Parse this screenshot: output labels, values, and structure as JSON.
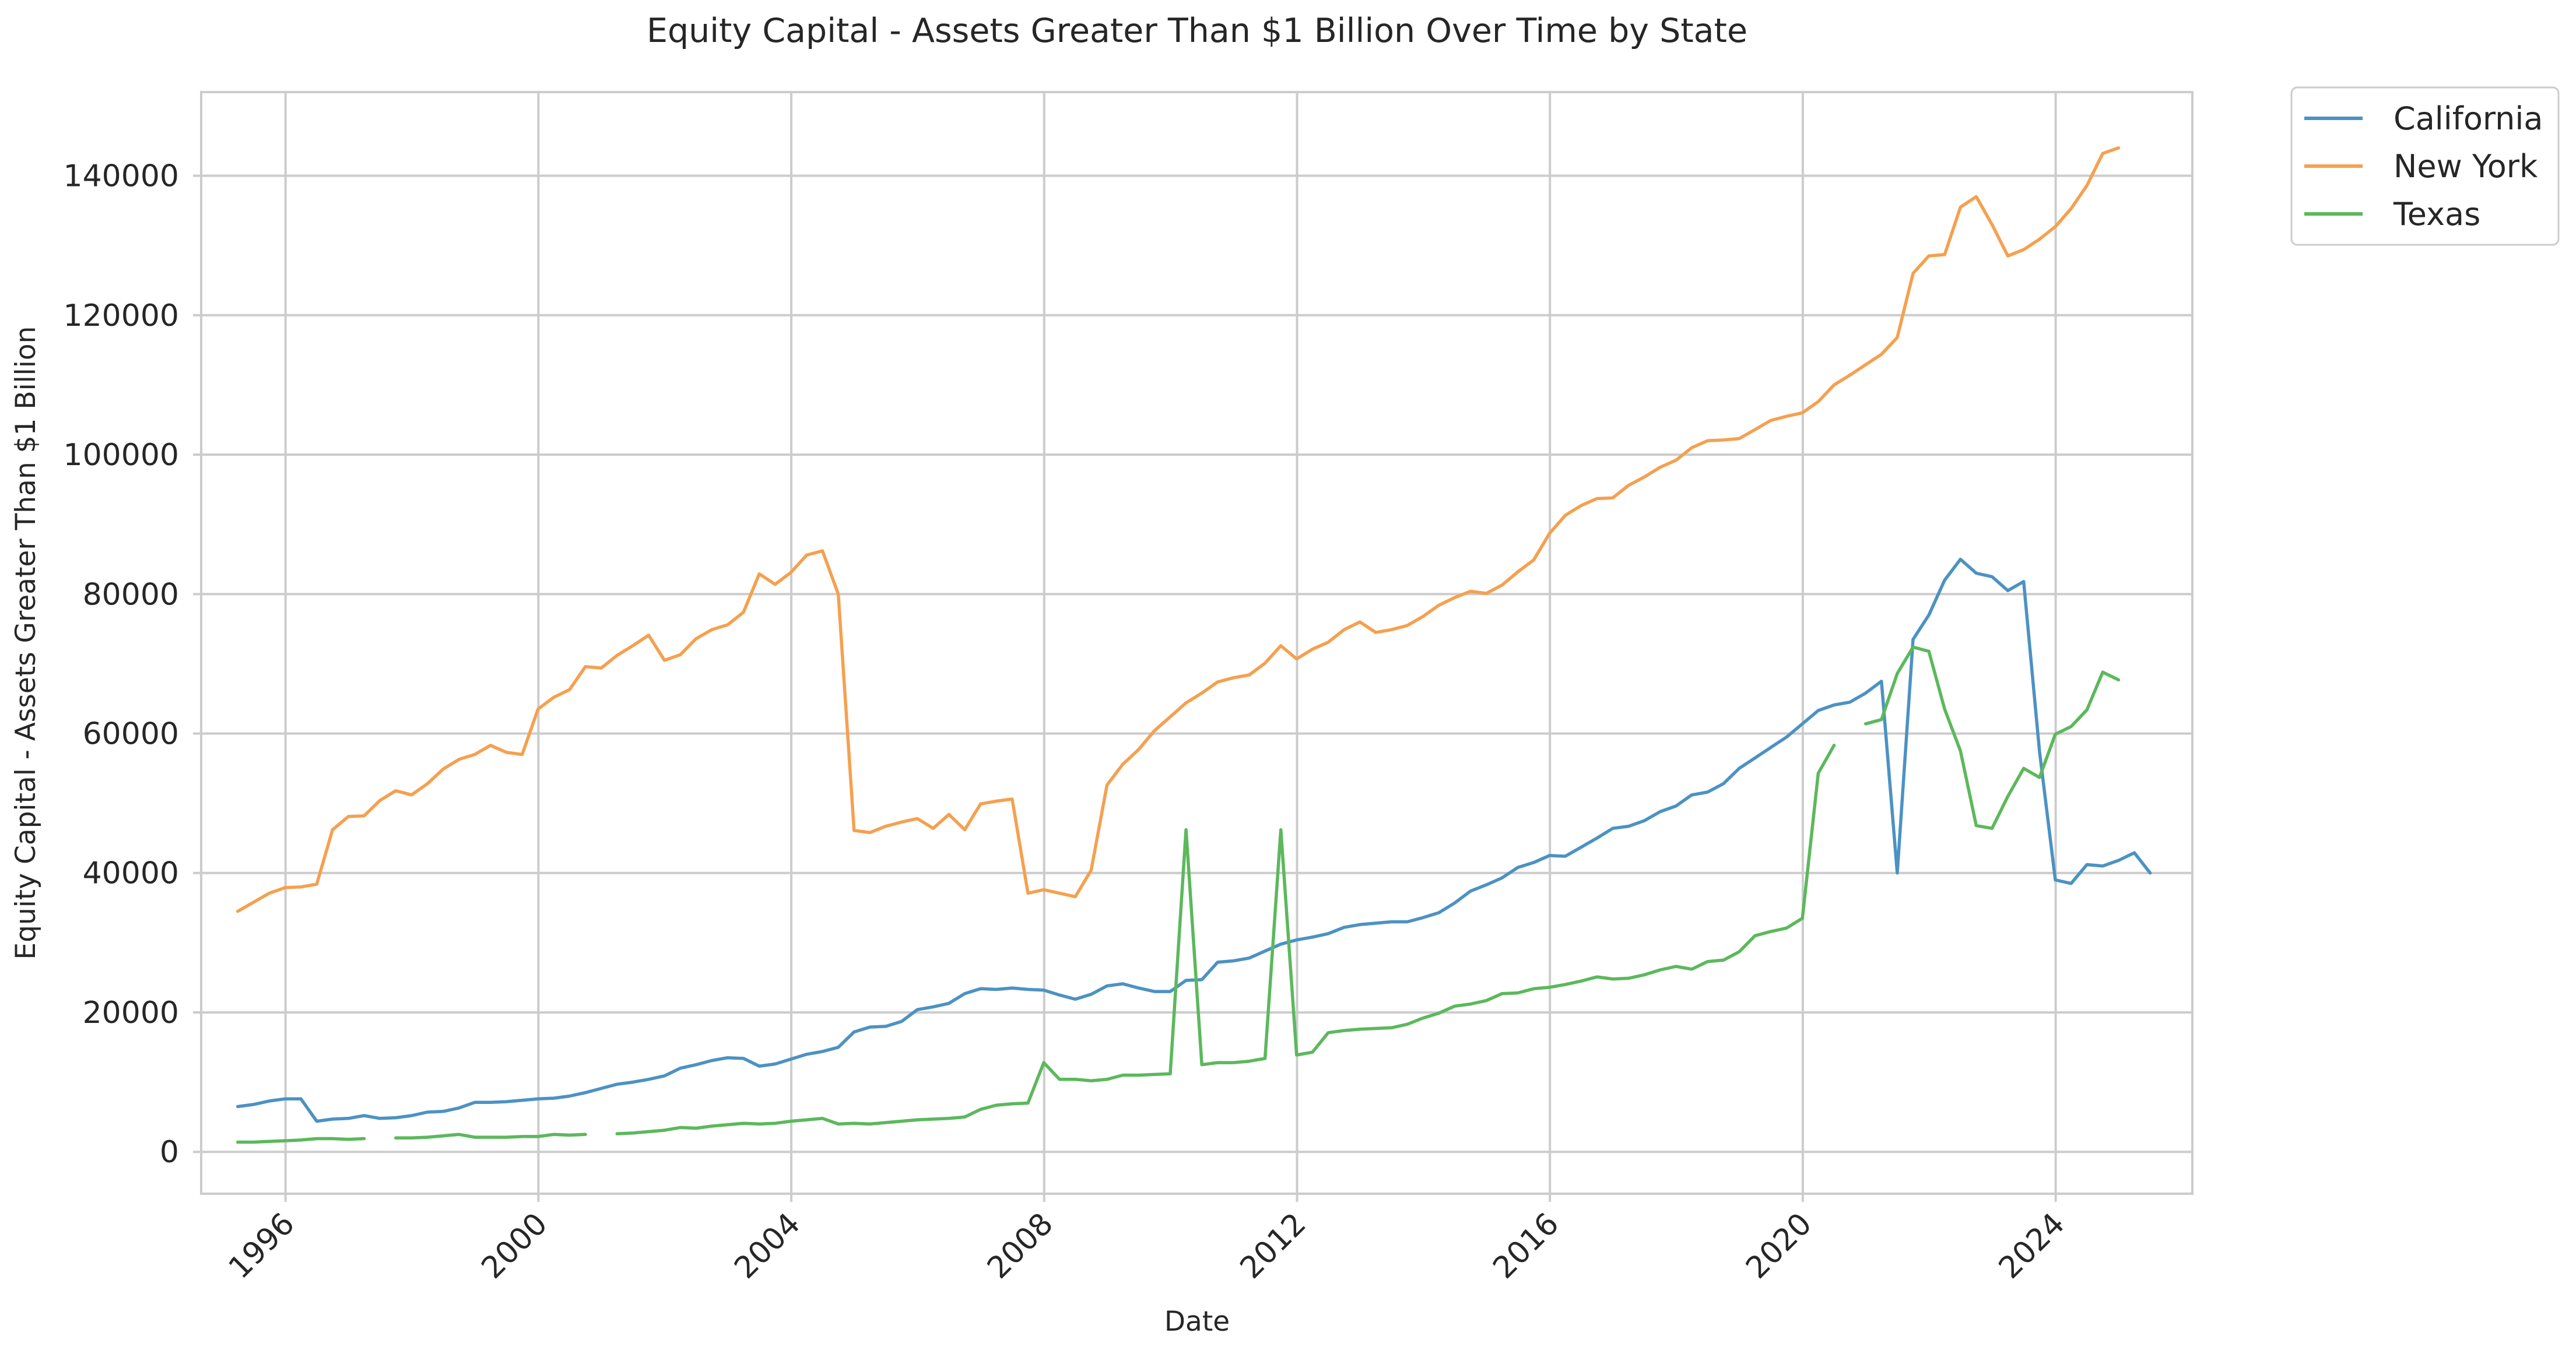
{
  "chart_data": {
    "type": "line",
    "title": "Equity Capital - Assets Greater Than $1 Billion Over Time by State",
    "xlabel": "Date",
    "ylabel": "Equity Capital - Assets Greater Than $1 Billion",
    "xlim": [
      "1994-09-01",
      "2026-03-01"
    ],
    "ylim": [
      -6000,
      152000
    ],
    "x_ticks": [
      "1996",
      "2000",
      "2004",
      "2008",
      "2012",
      "2016",
      "2020",
      "2024"
    ],
    "y_ticks": [
      0,
      20000,
      40000,
      60000,
      80000,
      100000,
      120000,
      140000
    ],
    "y_tick_labels": [
      "0",
      "20000",
      "40000",
      "60000",
      "80000",
      "100000",
      "120000",
      "140000"
    ],
    "grid": true,
    "legend_position": "outside top-right",
    "start_quarter": "1995-03-31",
    "series": [
      {
        "name": "California",
        "color": "#4c92c3",
        "values": [
          6500,
          6800,
          7300,
          7600,
          7600,
          4400,
          4700,
          4800,
          5200,
          4800,
          4900,
          5200,
          5700,
          5800,
          6300,
          7100,
          7100,
          7200,
          7400,
          7600,
          7700,
          8000,
          8500,
          9100,
          9700,
          10000,
          10400,
          10900,
          12000,
          12500,
          13100,
          13500,
          13400,
          12300,
          12600,
          13300,
          14000,
          14400,
          15000,
          17200,
          17900,
          18000,
          18700,
          20400,
          20800,
          21300,
          22700,
          23400,
          23300,
          23500,
          23300,
          23200,
          22500,
          21900,
          22600,
          23800,
          24100,
          23500,
          23000,
          23000,
          24600,
          24700,
          27200,
          27400,
          27800,
          28800,
          29800,
          30400,
          30800,
          31300,
          32200,
          32600,
          32800,
          33000,
          33000,
          33600,
          34300,
          35700,
          37400,
          38300,
          39300,
          40800,
          41500,
          42500,
          42400,
          43700,
          45000,
          46400,
          46700,
          47500,
          48800,
          49600,
          51200,
          51600,
          52800,
          55000,
          56500,
          58000,
          59500,
          61400,
          63300,
          64100,
          64500,
          65800,
          67500,
          40000,
          73500,
          77000,
          82000,
          85000,
          83000,
          82500,
          80500,
          81800,
          57500,
          39000,
          38500,
          41200,
          41000,
          41800,
          42900,
          40000
        ]
      },
      {
        "name": "New York",
        "color": "#f5a04f",
        "values": [
          34500,
          35800,
          37100,
          37900,
          38000,
          38400,
          46200,
          48100,
          48200,
          50400,
          51800,
          51200,
          52800,
          54900,
          56300,
          57000,
          58300,
          57300,
          57000,
          63500,
          65200,
          66300,
          69600,
          69400,
          71200,
          72600,
          74100,
          70500,
          71300,
          73600,
          74900,
          75600,
          77400,
          82900,
          81400,
          83100,
          85600,
          86200,
          80000,
          46100,
          45800,
          46700,
          47300,
          47800,
          46400,
          48400,
          46200,
          49900,
          50300,
          50600,
          37100,
          37600,
          37100,
          36600,
          40400,
          52600,
          55600,
          57700,
          60400,
          62400,
          64400,
          65800,
          67400,
          68000,
          68400,
          70100,
          72600,
          70700,
          72100,
          73100,
          74900,
          76000,
          74500,
          74900,
          75500,
          76800,
          78400,
          79500,
          80400,
          80100,
          81300,
          83200,
          84900,
          88700,
          91300,
          92700,
          93700,
          93800,
          95600,
          96800,
          98200,
          99200,
          101000,
          102000,
          102100,
          102300,
          103600,
          104900,
          105500,
          106000,
          107600,
          110000,
          111400,
          112900,
          114400,
          116800,
          126000,
          128500,
          128700,
          135500,
          137000,
          133000,
          128500,
          129400,
          130900,
          132700,
          135300,
          138600,
          143200,
          144000
        ]
      },
      {
        "name": "Texas",
        "color": "#5cb85c",
        "values": [
          1400,
          1400,
          1500,
          1600,
          1700,
          1900,
          1900,
          1800,
          1900,
          null,
          2000,
          2000,
          2100,
          2300,
          2500,
          2100,
          2100,
          2100,
          2200,
          2200,
          2500,
          2400,
          2500,
          null,
          2600,
          2700,
          2900,
          3100,
          3500,
          3400,
          3700,
          3900,
          4100,
          4000,
          4100,
          4400,
          4600,
          4800,
          4000,
          4100,
          4000,
          4200,
          4400,
          4600,
          4700,
          4800,
          5000,
          6100,
          6700,
          6900,
          7000,
          12800,
          10400,
          10400,
          10200,
          10400,
          11000,
          11000,
          11100,
          11200,
          46200,
          12500,
          12800,
          12800,
          13000,
          13400,
          46200,
          13900,
          14300,
          17100,
          17400,
          17600,
          17700,
          17800,
          18300,
          19200,
          19900,
          20900,
          21200,
          21700,
          22700,
          22800,
          23400,
          23600,
          24000,
          24500,
          25100,
          24800,
          24900,
          25400,
          26100,
          26600,
          26200,
          27300,
          27500,
          28700,
          31000,
          31600,
          32100,
          33500,
          54300,
          58300,
          null,
          61400,
          62000,
          68600,
          72400,
          71800,
          63500,
          57500,
          46800,
          46400,
          51000,
          55000,
          53700,
          59900,
          61000,
          63400,
          68800,
          67700
        ]
      }
    ]
  }
}
